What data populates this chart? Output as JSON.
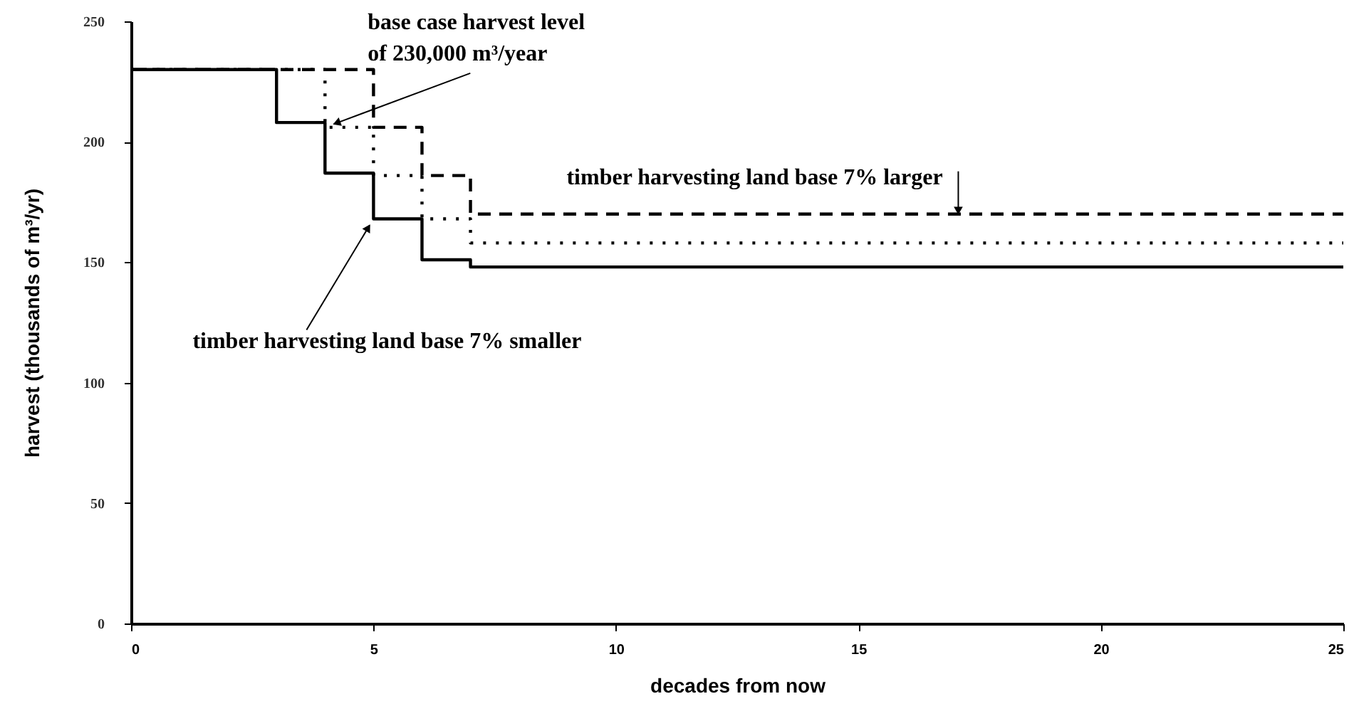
{
  "chart_data": {
    "type": "step",
    "xlabel": "decades from now",
    "ylabel": "harvest (thousands of m³/yr)",
    "xlim": [
      0,
      25
    ],
    "xticks": [
      0,
      5,
      10,
      15,
      20,
      25
    ],
    "ylim": [
      0,
      250
    ],
    "yticks": [
      0,
      50,
      100,
      150,
      200,
      250
    ],
    "grid": false,
    "series": [
      {
        "color": "#000000",
        "line_style": "solid",
        "x": [
          0,
          3,
          4,
          5,
          6,
          7,
          25
        ],
        "values": [
          230,
          208,
          187,
          168,
          151,
          148,
          148
        ]
      },
      {
        "color": "#000000",
        "line_style": "dotted",
        "x": [
          0,
          4,
          5,
          6,
          7,
          25
        ],
        "values": [
          230,
          206,
          186,
          168,
          158,
          158
        ]
      },
      {
        "color": "#000000",
        "line_style": "dashed",
        "x": [
          0,
          5,
          6,
          7,
          25
        ],
        "values": [
          230,
          206,
          186,
          170,
          170
        ]
      }
    ],
    "annotations": [
      {
        "text": "base case harvest level of 230,000 m³/year",
        "x": 4,
        "y": 206
      },
      {
        "text": "timber harvesting land base 7% larger",
        "x": 17.06,
        "y": 170
      },
      {
        "text": "timber harvesting land base 7% smaller",
        "x": 5,
        "y": 168
      }
    ]
  }
}
